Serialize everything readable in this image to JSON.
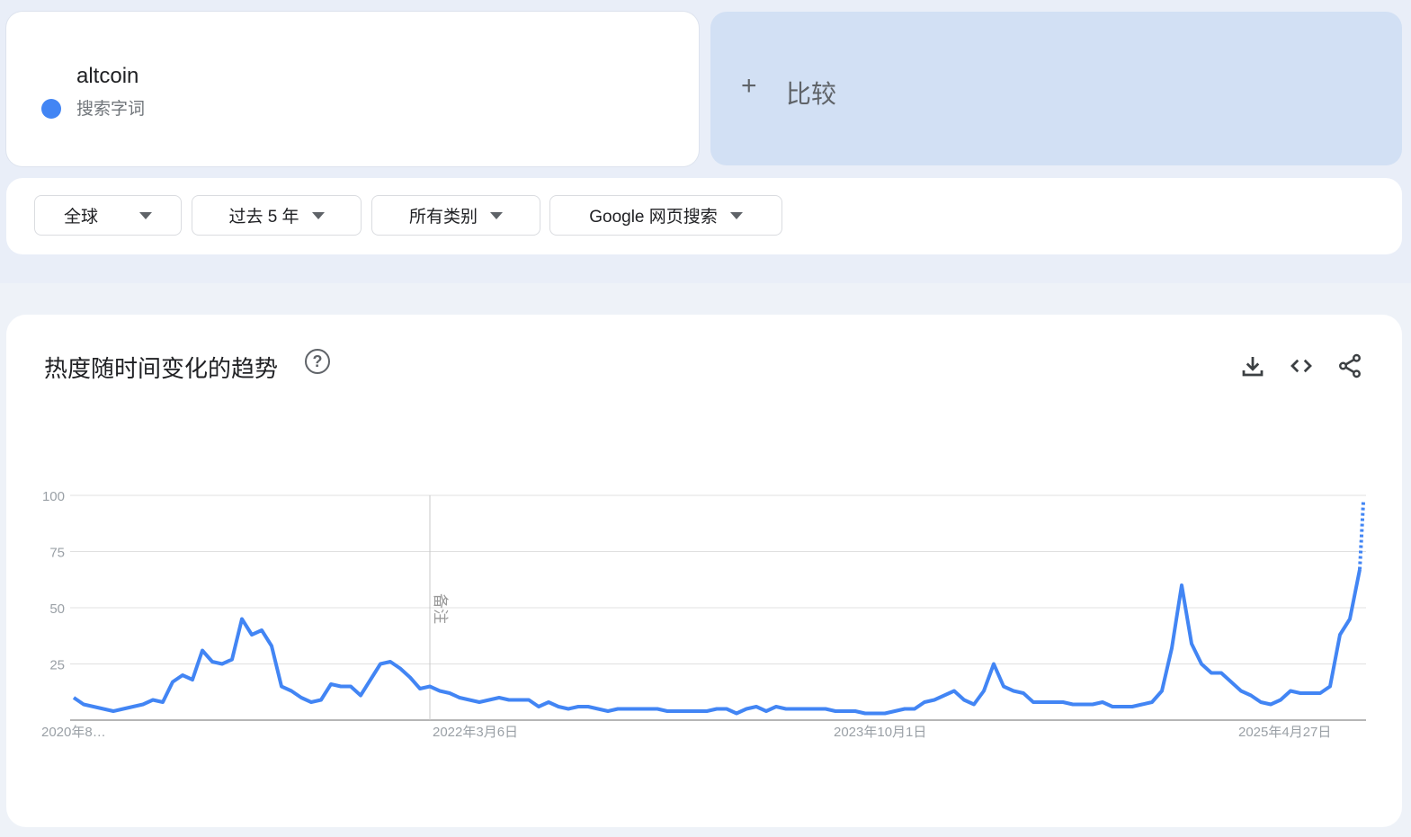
{
  "search_term": {
    "term": "altcoin",
    "type": "搜索字词",
    "color": "#4285f4"
  },
  "compare": {
    "plus": "+",
    "label": "比较"
  },
  "filters": [
    {
      "label": "全球"
    },
    {
      "label": "过去 5 年"
    },
    {
      "label": "所有类别"
    },
    {
      "label": "Google 网页搜索"
    }
  ],
  "chart_card": {
    "title": "热度随时间变化的趋势",
    "help_icon": "help-circle-icon",
    "actions": [
      "download-icon",
      "embed-code-icon",
      "share-icon"
    ]
  },
  "chart_data": {
    "type": "line",
    "ylim": [
      0,
      100
    ],
    "y_ticks": [
      "100",
      "75",
      "50",
      "25"
    ],
    "x_tick_labels": [
      "2020年8…",
      "2022年3月6日",
      "2023年10月1日",
      "2025年4月27日"
    ],
    "annotation": "备注",
    "grid": true,
    "line_color": "#4285f4",
    "partial_last_value": 97,
    "series": [
      {
        "values": [
          10,
          7,
          6,
          5,
          4,
          5,
          6,
          7,
          9,
          8,
          17,
          20,
          18,
          31,
          26,
          25,
          27,
          45,
          38,
          40,
          33,
          15,
          13,
          10,
          8,
          9,
          16,
          15,
          15,
          11,
          18,
          25,
          26,
          23,
          19,
          14,
          15,
          13,
          12,
          10,
          9,
          8,
          9,
          10,
          9,
          9,
          9,
          6,
          8,
          6,
          5,
          6,
          6,
          5,
          4,
          5,
          5,
          5,
          5,
          5,
          4,
          4,
          4,
          4,
          4,
          5,
          5,
          3,
          5,
          6,
          4,
          6,
          5,
          5,
          5,
          5,
          5,
          4,
          4,
          4,
          3,
          3,
          3,
          4,
          5,
          5,
          8,
          9,
          11,
          13,
          9,
          7,
          13,
          25,
          15,
          13,
          12,
          8,
          8,
          8,
          8,
          7,
          7,
          7,
          8,
          6,
          6,
          6,
          7,
          8,
          13,
          32,
          60,
          34,
          25,
          21,
          21,
          17,
          13,
          11,
          8,
          7,
          9,
          13,
          12,
          12,
          12,
          15,
          38,
          45,
          67
        ]
      }
    ]
  }
}
